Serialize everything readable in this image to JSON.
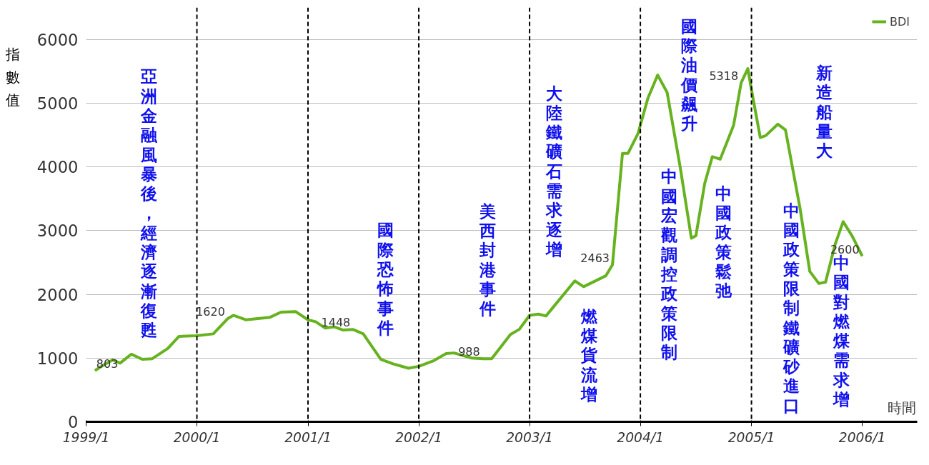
{
  "chart_data": {
    "type": "line",
    "ylabel": "指數值",
    "xlabel": "時間",
    "xlim": [
      "1999-01-01",
      "2006-07-01"
    ],
    "ylim": [
      0,
      6500
    ],
    "xticks": [
      {
        "value": "1999-01-01",
        "label": "1999/1"
      },
      {
        "value": "2000-01-01",
        "label": "2000/1"
      },
      {
        "value": "2001-01-01",
        "label": "2001/1"
      },
      {
        "value": "2002-01-01",
        "label": "2002/1"
      },
      {
        "value": "2003-01-01",
        "label": "2003/1"
      },
      {
        "value": "2004-01-01",
        "label": "2004/1"
      },
      {
        "value": "2005-01-01",
        "label": "2005/1"
      },
      {
        "value": "2006-01-01",
        "label": "2006/1"
      }
    ],
    "yticks": [
      0,
      1000,
      2000,
      3000,
      4000,
      5000,
      6000
    ],
    "grid": "y",
    "legend": "top right",
    "line_style": "solid",
    "series": [
      {
        "name": "BDI",
        "color": "#66b21f",
        "x": [
          "1999-01-30",
          "1999-02-17",
          "1999-03-29",
          "1999-04-23",
          "1999-05-30",
          "1999-07-05",
          "1999-08-07",
          "1999-09-27",
          "1999-11-03",
          "2000-01-01",
          "2000-02-24",
          "2000-04-12",
          "2000-04-30",
          "2000-06-10",
          "2000-08-29",
          "2000-10-04",
          "2000-11-21",
          "2001-01-01",
          "2001-01-26",
          "2001-02-27",
          "2001-03-29",
          "2001-04-27",
          "2001-05-30",
          "2001-07-02",
          "2001-08-29",
          "2001-10-08",
          "2001-11-28",
          "2002-01-01",
          "2002-02-20",
          "2002-04-01",
          "2002-04-27",
          "2002-06-24",
          "2002-07-31",
          "2002-08-29",
          "2002-10-30",
          "2002-11-28",
          "2003-01-01",
          "2003-01-30",
          "2003-02-24",
          "2003-05-30",
          "2003-06-28",
          "2003-09-09",
          "2003-10-01",
          "2003-11-03",
          "2003-11-21",
          "2003-12-24",
          "2004-01-26",
          "2004-02-27",
          "2004-03-29",
          "2004-05-11",
          "2004-06-17",
          "2004-07-02",
          "2004-07-31",
          "2004-08-25",
          "2004-09-20",
          "2004-11-03",
          "2004-11-28",
          "2004-12-20",
          "2005-01-01",
          "2005-01-30",
          "2005-02-17",
          "2005-03-29",
          "2005-04-23",
          "2005-06-10",
          "2005-07-12",
          "2005-08-11",
          "2005-09-02",
          "2005-10-04",
          "2005-10-30",
          "2005-11-28",
          "2006-01-01"
        ],
        "values": [
          803,
          860,
          970,
          920,
          1060,
          980,
          990,
          1150,
          1340,
          1350,
          1380,
          1620,
          1670,
          1600,
          1640,
          1720,
          1730,
          1600,
          1570,
          1470,
          1490,
          1440,
          1448,
          1380,
          980,
          910,
          840,
          870,
          960,
          1070,
          1080,
          1000,
          988,
          990,
          1370,
          1450,
          1670,
          1690,
          1660,
          2210,
          2120,
          2290,
          2463,
          4210,
          4210,
          4520,
          5080,
          5440,
          5170,
          4000,
          2880,
          2920,
          3740,
          4160,
          4120,
          4650,
          5318,
          5540,
          5210,
          4460,
          4490,
          4670,
          4580,
          3350,
          2360,
          2170,
          2190,
          2790,
          3140,
          2920,
          2600
        ],
        "value_labels": [
          "803",
          null,
          null,
          null,
          null,
          null,
          null,
          null,
          null,
          null,
          null,
          "1620",
          null,
          null,
          null,
          null,
          null,
          null,
          null,
          null,
          null,
          null,
          "1448",
          null,
          null,
          null,
          null,
          null,
          null,
          null,
          null,
          null,
          "988",
          null,
          null,
          null,
          null,
          null,
          null,
          null,
          null,
          null,
          "2463",
          null,
          null,
          null,
          null,
          null,
          null,
          null,
          null,
          null,
          null,
          null,
          null,
          null,
          "5318",
          null,
          null,
          null,
          null,
          null,
          null,
          null,
          null,
          null,
          null,
          null,
          null,
          null,
          "2600"
        ]
      }
    ],
    "ref_lines": [
      {
        "axis": "x",
        "value": "2000-01-01",
        "color": "#000000",
        "line_style": "dashed"
      },
      {
        "axis": "x",
        "value": "2001-01-01",
        "color": "#000000",
        "line_style": "dashed"
      },
      {
        "axis": "x",
        "value": "2002-01-01",
        "color": "#000000",
        "line_style": "dashed"
      },
      {
        "axis": "x",
        "value": "2003-01-01",
        "color": "#000000",
        "line_style": "dashed"
      },
      {
        "axis": "x",
        "value": "2004-01-01",
        "color": "#000000",
        "line_style": "dashed"
      },
      {
        "axis": "x",
        "value": "2005-01-01",
        "color": "#000000",
        "line_style": "dashed"
      }
    ],
    "annotations": [
      "亞洲金融風暴後，經濟逐漸復甦",
      "國際恐怖事件",
      "美西封港事件",
      "大陸鐵礦石需求逐增",
      "燃煤貨流增",
      "國際油價飆升",
      "中國宏觀調控政策限制",
      "中國政策鬆弛",
      "新造船量大",
      "中國政策限制鐵礦砂進口",
      "中國對燃煤需求增"
    ]
  }
}
